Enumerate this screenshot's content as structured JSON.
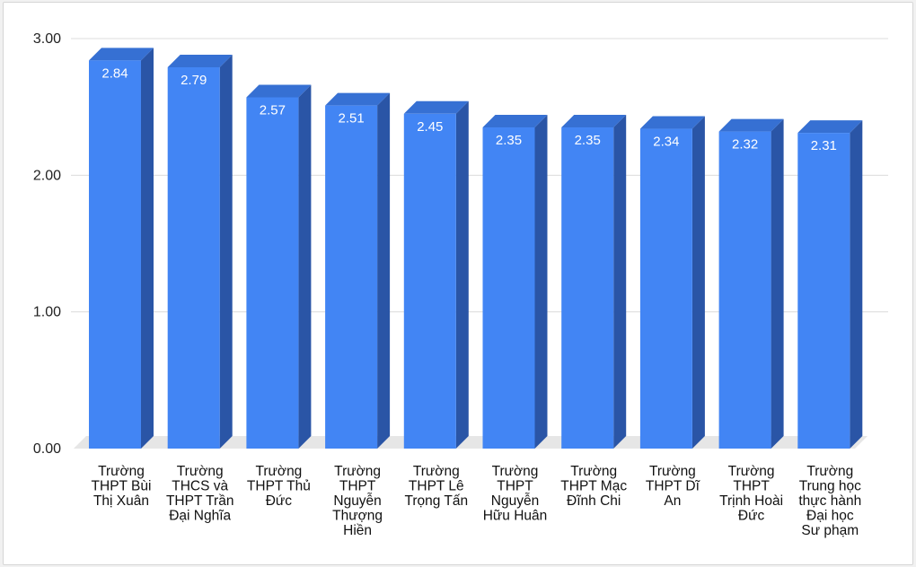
{
  "chart_data": {
    "type": "bar",
    "style": "3d-column",
    "title": "",
    "xlabel": "",
    "ylabel": "",
    "ylim": [
      0,
      3
    ],
    "yticks": [
      0,
      1,
      2,
      3
    ],
    "ytick_labels": [
      "0.00",
      "1.00",
      "2.00",
      "3.00"
    ],
    "grid": true,
    "legend": "none",
    "colors": {
      "bar_front": "#4285f4",
      "bar_side": "#2a55a6",
      "bar_top": "#3670d3",
      "floor": "#e6e6e6",
      "grid": "#dcdcdc"
    },
    "categories": [
      [
        "Trường",
        "THPT Bùi",
        "Thị Xuân"
      ],
      [
        "Trường",
        "THCS và",
        "THPT Trần",
        "Đại Nghĩa"
      ],
      [
        "Trường",
        "THPT Thủ",
        "Đức"
      ],
      [
        "Trường",
        "THPT",
        "Nguyễn",
        "Thượng",
        "Hiền"
      ],
      [
        "Trường",
        "THPT Lê",
        "Trọng Tấn"
      ],
      [
        "Trường",
        "THPT",
        "Nguyễn",
        "Hữu Huân"
      ],
      [
        "Trường",
        "THPT Mạc",
        "Đĩnh Chi"
      ],
      [
        "Trường",
        "THPT Dĩ",
        "An"
      ],
      [
        "Trường",
        "THPT",
        "Trịnh Hoài",
        "Đức"
      ],
      [
        "Trường",
        "Trung học",
        "thực hành",
        "Đại học",
        "Sư phạm"
      ]
    ],
    "values": [
      2.84,
      2.79,
      2.57,
      2.51,
      2.45,
      2.35,
      2.35,
      2.34,
      2.32,
      2.31
    ],
    "data_labels": [
      "2.84",
      "2.79",
      "2.57",
      "2.51",
      "2.45",
      "2.35",
      "2.35",
      "2.34",
      "2.32",
      "2.31"
    ]
  }
}
